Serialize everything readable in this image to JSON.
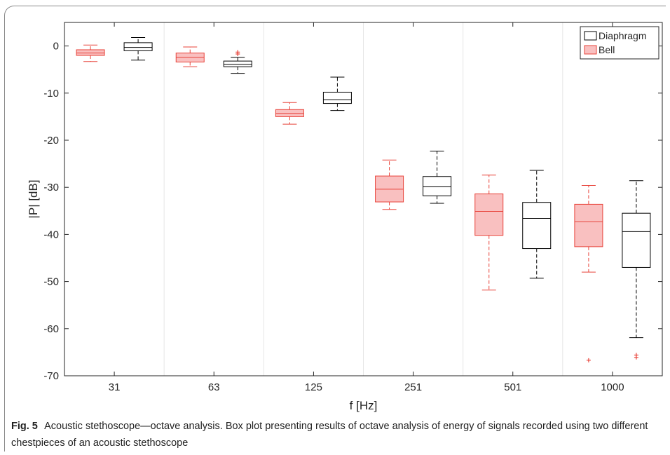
{
  "caption": {
    "label": "Fig. 5",
    "text": "Acoustic stethoscope—octave analysis. Box plot presenting results of octave analysis of energy of signals recorded using two different chestpieces of an acoustic stethoscope"
  },
  "chart_data": {
    "type": "box",
    "title": "",
    "xlabel": "f [Hz]",
    "ylabel": "|P| [dB]",
    "ylim": [
      -70,
      5
    ],
    "yticks": [
      0,
      -10,
      -20,
      -30,
      -40,
      -50,
      -60,
      -70
    ],
    "categories": [
      "31",
      "63",
      "125",
      "251",
      "501",
      "1000"
    ],
    "grid": "vertical",
    "legend_position": "top-right",
    "series": [
      {
        "name": "Diaphragm",
        "color": "#000000",
        "fill": "#ffffff",
        "boxes": [
          {
            "category": "31",
            "whisker_low": -3.0,
            "q1": -1.0,
            "median": -0.3,
            "q3": 0.7,
            "whisker_high": 1.8,
            "outliers": []
          },
          {
            "category": "63",
            "whisker_low": -5.8,
            "q1": -4.4,
            "median": -3.9,
            "q3": -3.2,
            "whisker_high": -2.4,
            "outliers": [
              -1.3,
              -1.7
            ]
          },
          {
            "category": "125",
            "whisker_low": -13.7,
            "q1": -12.2,
            "median": -11.4,
            "q3": -9.8,
            "whisker_high": -6.6,
            "outliers": []
          },
          {
            "category": "251",
            "whisker_low": -33.4,
            "q1": -31.8,
            "median": -29.9,
            "q3": -27.7,
            "whisker_high": -22.3,
            "outliers": []
          },
          {
            "category": "501",
            "whisker_low": -49.3,
            "q1": -43.0,
            "median": -36.6,
            "q3": -33.2,
            "whisker_high": -26.4,
            "outliers": []
          },
          {
            "category": "1000",
            "whisker_low": -61.9,
            "q1": -47.0,
            "median": -39.4,
            "q3": -35.5,
            "whisker_high": -28.6,
            "outliers": [
              -65.6,
              -66.1
            ]
          }
        ]
      },
      {
        "name": "Bell",
        "color": "#e8433a",
        "fill": "#f9c0c0",
        "boxes": [
          {
            "category": "31",
            "whisker_low": -3.3,
            "q1": -2.0,
            "median": -1.5,
            "q3": -0.8,
            "whisker_high": 0.2,
            "outliers": []
          },
          {
            "category": "63",
            "whisker_low": -4.4,
            "q1": -3.4,
            "median": -2.4,
            "q3": -1.5,
            "whisker_high": -0.2,
            "outliers": []
          },
          {
            "category": "125",
            "whisker_low": -16.6,
            "q1": -15.0,
            "median": -14.3,
            "q3": -13.5,
            "whisker_high": -12.0,
            "outliers": []
          },
          {
            "category": "251",
            "whisker_low": -34.7,
            "q1": -33.1,
            "median": -30.4,
            "q3": -27.6,
            "whisker_high": -24.2,
            "outliers": []
          },
          {
            "category": "501",
            "whisker_low": -51.8,
            "q1": -40.2,
            "median": -35.1,
            "q3": -31.4,
            "whisker_high": -27.4,
            "outliers": []
          },
          {
            "category": "1000",
            "whisker_low": -48.0,
            "q1": -42.6,
            "median": -37.3,
            "q3": -33.6,
            "whisker_high": -29.6,
            "outliers": [
              -66.7
            ]
          }
        ]
      }
    ]
  }
}
